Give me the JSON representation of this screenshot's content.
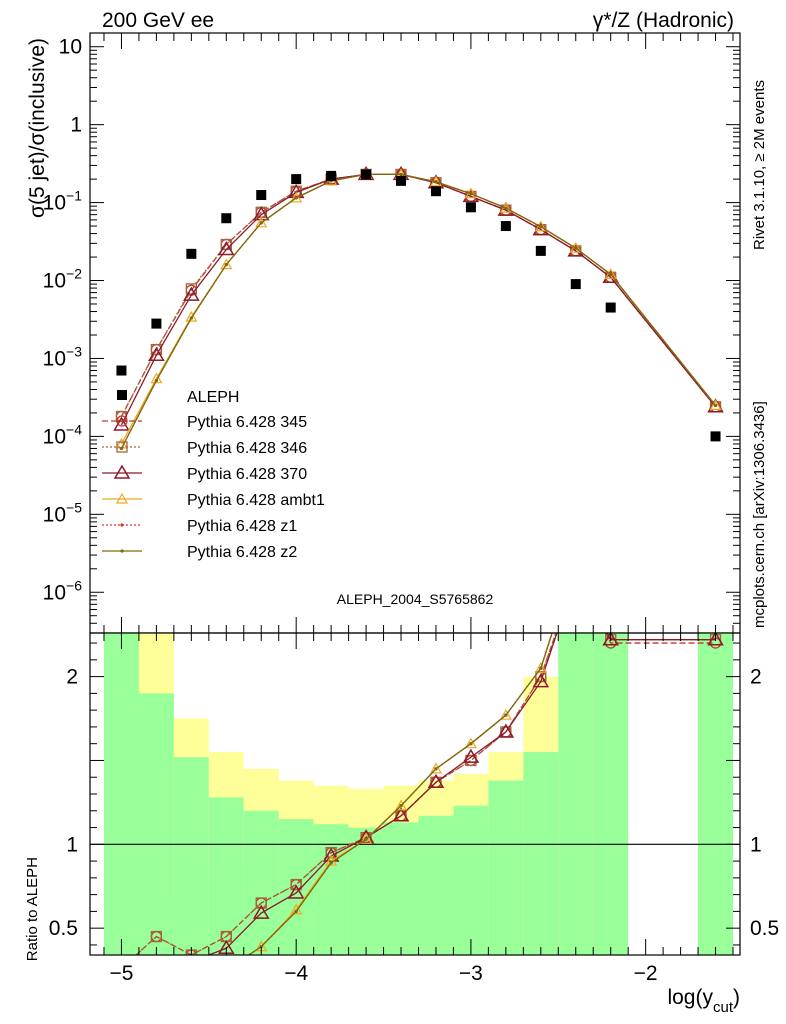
{
  "header": {
    "left": "200 GeV ee",
    "right": "γ*/Z (Hadronic)"
  },
  "side_text": {
    "rivet": "Rivet 3.1.10, ≥ 2M events",
    "mcplots": "mcplots.cern.ch [arXiv:1306.3436]"
  },
  "analysis_id": "ALEPH_2004_S5765862",
  "colors": {
    "data": "#000000",
    "p345": "#c0392b",
    "p346": "#a0663a",
    "p370": "#8b1a2b",
    "ambt1": "#f0a820",
    "z1": "#e03030",
    "z2": "#7a6a10",
    "band_green": "#99ff99",
    "band_yellow": "#ffff99"
  },
  "chart_data": [
    {
      "type": "scatter",
      "ylabel": "σ(5 jet)/σ(inclusive)",
      "yscale": "log",
      "ylim": [
        3e-07,
        15
      ],
      "xlim": [
        -5.18,
        -1.46
      ],
      "y_ticks": [
        {
          "v": 10,
          "label": "10"
        },
        {
          "v": 1,
          "label": "1"
        },
        {
          "v": 0.1,
          "label": "10^-1"
        },
        {
          "v": 0.01,
          "label": "10^-2"
        },
        {
          "v": 0.001,
          "label": "10^-3"
        },
        {
          "v": 0.0001,
          "label": "10^-4"
        },
        {
          "v": 1e-05,
          "label": "10^-5"
        },
        {
          "v": 1e-06,
          "label": "10^-6"
        }
      ],
      "legend_placement": "bottom-left",
      "data_series": {
        "name": "ALEPH",
        "x": [
          -5.0,
          -4.8,
          -4.6,
          -4.4,
          -4.2,
          -4.0,
          -3.8,
          -3.6,
          -3.4,
          -3.2,
          -3.0,
          -2.8,
          -2.6,
          -2.4,
          -2.2,
          -1.6
        ],
        "y": [
          0.0007,
          0.0028,
          0.022,
          0.063,
          0.125,
          0.2,
          0.22,
          0.23,
          0.19,
          0.14,
          0.087,
          0.05,
          0.024,
          0.009,
          0.0045,
          0.0001
        ]
      },
      "x": [
        -5.0,
        -4.8,
        -4.6,
        -4.4,
        -4.2,
        -4.0,
        -3.8,
        -3.6,
        -3.4,
        -3.2,
        -3.0,
        -2.8,
        -2.6,
        -2.4,
        -2.2,
        -1.6
      ],
      "series": [
        {
          "name": "Pythia 6.428 345",
          "marker": "circle",
          "dash": "6,3",
          "y": [
            0.00018,
            0.0013,
            0.0075,
            0.029,
            0.075,
            0.14,
            0.2,
            0.23,
            0.23,
            0.18,
            0.12,
            0.08,
            0.045,
            0.024,
            0.011,
            0.00024
          ]
        },
        {
          "name": "Pythia 6.428 346",
          "marker": "square",
          "dash": "2,2",
          "y": [
            0.00018,
            0.0013,
            0.0078,
            0.029,
            0.075,
            0.14,
            0.2,
            0.23,
            0.23,
            0.18,
            0.12,
            0.08,
            0.045,
            0.024,
            0.011,
            0.00024
          ]
        },
        {
          "name": "Pythia 6.428 370",
          "marker": "triangle",
          "dash": "",
          "y": [
            0.00014,
            0.0011,
            0.0065,
            0.025,
            0.07,
            0.135,
            0.2,
            0.23,
            0.23,
            0.18,
            0.12,
            0.08,
            0.045,
            0.024,
            0.011,
            0.00024
          ]
        },
        {
          "name": "Pythia 6.428 ambt1",
          "marker": "smalltriangle",
          "dash": "",
          "y": [
            8e-05,
            0.00055,
            0.0034,
            0.016,
            0.055,
            0.115,
            0.19,
            0.23,
            0.23,
            0.185,
            0.13,
            0.085,
            0.049,
            0.026,
            0.012,
            0.00025
          ]
        },
        {
          "name": "Pythia 6.428 z1",
          "marker": "dot",
          "dash": "2,2",
          "y": [
            7e-05,
            0.00052,
            0.0033,
            0.016,
            0.055,
            0.115,
            0.19,
            0.23,
            0.23,
            0.185,
            0.13,
            0.085,
            0.049,
            0.026,
            0.012,
            0.00025
          ]
        },
        {
          "name": "Pythia 6.428 z2",
          "marker": "dot",
          "dash": "",
          "y": [
            7e-05,
            0.00052,
            0.0033,
            0.016,
            0.055,
            0.115,
            0.19,
            0.23,
            0.23,
            0.185,
            0.13,
            0.085,
            0.049,
            0.026,
            0.012,
            0.00025
          ]
        }
      ]
    },
    {
      "type": "line",
      "ylabel": "Ratio to ALEPH",
      "xlabel": "log(y_cut)",
      "ylim": [
        0.34,
        2.26
      ],
      "xlim": [
        -5.18,
        -1.46
      ],
      "x_ticks": [
        {
          "v": -5,
          "label": "−5"
        },
        {
          "v": -4,
          "label": "−4"
        },
        {
          "v": -3,
          "label": "−3"
        },
        {
          "v": -2,
          "label": "−2"
        }
      ],
      "y_ticks": [
        {
          "v": 0.5,
          "label": "0.5"
        },
        {
          "v": 1,
          "label": "1"
        },
        {
          "v": 2,
          "label": "2"
        }
      ],
      "bands": [
        {
          "x0": -5.1,
          "x1": -4.9,
          "y0": 0.34,
          "y1": 2.26,
          "inner": [
            0.34,
            2.26
          ]
        },
        {
          "x0": -4.9,
          "x1": -4.7,
          "y0": 0.34,
          "y1": 2.26,
          "inner": [
            0.34,
            1.9
          ]
        },
        {
          "x0": -4.7,
          "x1": -4.5,
          "y0": 0.7,
          "y1": 1.75,
          "inner": [
            0.34,
            1.52
          ]
        },
        {
          "x0": -4.5,
          "x1": -4.3,
          "y0": 0.8,
          "y1": 1.55,
          "inner": [
            0.34,
            1.28
          ]
        },
        {
          "x0": -4.3,
          "x1": -4.1,
          "y0": 0.86,
          "y1": 1.45,
          "inner": [
            0.34,
            1.2
          ]
        },
        {
          "x0": -4.1,
          "x1": -3.9,
          "y0": 0.9,
          "y1": 1.38,
          "inner": [
            0.34,
            1.15
          ]
        },
        {
          "x0": -3.9,
          "x1": -3.7,
          "y0": 0.93,
          "y1": 1.35,
          "inner": [
            0.34,
            1.12
          ]
        },
        {
          "x0": -3.7,
          "x1": -3.5,
          "y0": 0.95,
          "y1": 1.33,
          "inner": [
            0.34,
            1.1
          ]
        },
        {
          "x0": -3.5,
          "x1": -3.3,
          "y0": 0.95,
          "y1": 1.35,
          "inner": [
            0.34,
            1.13
          ]
        },
        {
          "x0": -3.3,
          "x1": -3.1,
          "y0": 0.92,
          "y1": 1.38,
          "inner": [
            0.34,
            1.17
          ]
        },
        {
          "x0": -3.1,
          "x1": -2.9,
          "y0": 0.87,
          "y1": 1.42,
          "inner": [
            0.34,
            1.23
          ]
        },
        {
          "x0": -2.9,
          "x1": -2.7,
          "y0": 0.75,
          "y1": 1.55,
          "inner": [
            0.34,
            1.38
          ]
        },
        {
          "x0": -2.7,
          "x1": -2.5,
          "y0": 0.34,
          "y1": 2.0,
          "inner": [
            0.34,
            1.55
          ]
        },
        {
          "x0": -2.5,
          "x1": -2.3,
          "y0": 0.34,
          "y1": 2.26,
          "inner": [
            0.34,
            2.26
          ]
        },
        {
          "x0": -2.3,
          "x1": -2.1,
          "y0": 0.34,
          "y1": 2.26,
          "inner": [
            0.34,
            2.26
          ]
        },
        {
          "x0": -1.7,
          "x1": -1.5,
          "y0": 0.34,
          "y1": 2.26,
          "inner": [
            0.34,
            2.26
          ]
        }
      ],
      "ratio_x": [
        -5.0,
        -4.8,
        -4.6,
        -4.4,
        -4.2,
        -4.0,
        -3.8,
        -3.6,
        -3.4,
        -3.2,
        -3.0,
        -2.8,
        -2.6,
        -2.4,
        -2.2,
        -1.6
      ],
      "ratio_series": [
        {
          "name": "Pythia 6.428 345",
          "y": [
            0.26,
            0.45,
            0.34,
            0.45,
            0.65,
            0.76,
            0.95,
            1.04,
            1.17,
            1.37,
            1.5,
            1.67,
            2.0,
            2.6,
            2.2,
            2.2
          ]
        },
        {
          "name": "Pythia 6.428 346",
          "y": [
            0.26,
            0.45,
            0.34,
            0.45,
            0.65,
            0.76,
            0.95,
            1.04,
            1.17,
            1.37,
            1.5,
            1.67,
            2.0,
            2.6,
            2.22,
            2.22
          ]
        },
        {
          "name": "Pythia 6.428 370",
          "y": [
            0.2,
            0.3,
            0.3,
            0.38,
            0.59,
            0.71,
            0.93,
            1.04,
            1.17,
            1.37,
            1.52,
            1.67,
            1.97,
            2.6,
            2.22,
            2.22
          ]
        },
        {
          "name": "Pythia 6.428 ambt1",
          "y": [
            0.11,
            0.2,
            0.15,
            0.25,
            0.39,
            0.61,
            0.9,
            1.03,
            1.23,
            1.45,
            1.6,
            1.77,
            2.05,
            2.7,
            2.3,
            2.3
          ]
        },
        {
          "name": "Pythia 6.428 z1",
          "y": [
            0.1,
            0.19,
            0.15,
            0.25,
            0.39,
            0.6,
            0.89,
            1.03,
            1.23,
            1.45,
            1.6,
            1.77,
            2.05,
            2.7,
            2.3,
            2.3
          ]
        },
        {
          "name": "Pythia 6.428 z2",
          "y": [
            0.1,
            0.19,
            0.15,
            0.25,
            0.39,
            0.6,
            0.89,
            1.03,
            1.23,
            1.45,
            1.6,
            1.77,
            2.05,
            2.7,
            2.3,
            2.3
          ]
        }
      ]
    }
  ]
}
